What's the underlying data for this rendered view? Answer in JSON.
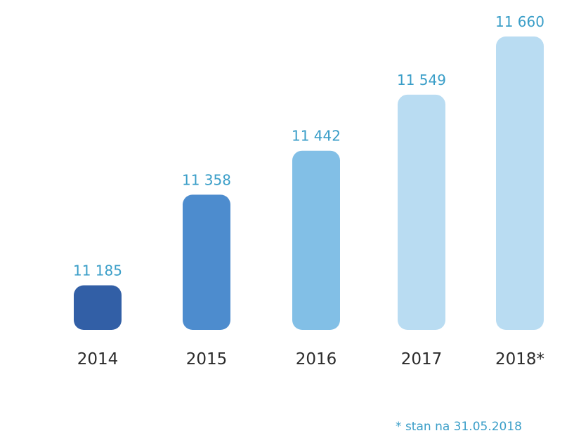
{
  "chart_data": {
    "type": "bar",
    "categories": [
      "2014",
      "2015",
      "2016",
      "2017",
      "2018*"
    ],
    "values": [
      11185,
      11358,
      11442,
      11549,
      11660
    ],
    "value_labels": [
      "11 185",
      "11 358",
      "11 442",
      "11 549",
      "11 660"
    ],
    "title": "",
    "xlabel": "",
    "ylabel": "",
    "ylim": [
      11100,
      11660
    ],
    "grid": false,
    "bar_colors": [
      "#325fa6",
      "#4d8cce",
      "#82bfe6",
      "#b9dcf2",
      "#b9dcf2"
    ],
    "value_label_color": "#3a9ec8"
  },
  "footnote": "* stan na 31.05.2018"
}
